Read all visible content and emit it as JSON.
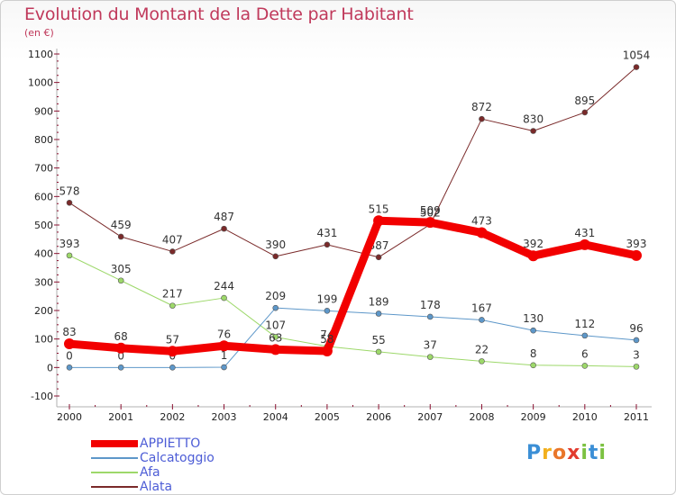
{
  "chart_title": "Evolution du Montant de la Dette par Habitant",
  "chart_subtitle": "(en €)",
  "logo": {
    "letters": [
      "P",
      "r",
      "o",
      "x",
      "i",
      "t",
      "i"
    ],
    "colors": [
      "#3b8fd6",
      "#f2b01e",
      "#e9762a",
      "#e23b2e",
      "#7cc242",
      "#3b8fd6",
      "#7cc242"
    ]
  },
  "chart_data": {
    "type": "line",
    "title": "Evolution du Montant de la Dette par Habitant",
    "subtitle": "(en €)",
    "xlabel": "",
    "ylabel": "",
    "ylim": [
      -100,
      1100
    ],
    "yticks": [
      "-100",
      "0",
      "100",
      "200",
      "300",
      "400",
      "500",
      "600",
      "700",
      "800",
      "900",
      "1000",
      "1100"
    ],
    "categories": [
      "2000",
      "2001",
      "2002",
      "2003",
      "2004",
      "2005",
      "2006",
      "2007",
      "2008",
      "2009",
      "2010",
      "2011"
    ],
    "grid": false,
    "legend_position": "bottom-left",
    "series": [
      {
        "name": "Alata",
        "color": "#7a2a2a",
        "values": [
          578,
          459,
          407,
          487,
          390,
          431,
          387,
          502,
          872,
          830,
          895,
          1054
        ]
      },
      {
        "name": "Afa",
        "color": "#9dd86a",
        "values": [
          393,
          305,
          217,
          244,
          107,
          74,
          55,
          37,
          22,
          8,
          6,
          3
        ]
      },
      {
        "name": "Calcatoggio",
        "color": "#5d97c9",
        "values": [
          0,
          0,
          0,
          1,
          209,
          199,
          189,
          178,
          167,
          130,
          112,
          96
        ]
      },
      {
        "name": "APPIETTO",
        "color": "#f20000",
        "values": [
          83,
          68,
          57,
          76,
          63,
          58,
          515,
          509,
          473,
          392,
          431,
          393
        ]
      }
    ]
  }
}
